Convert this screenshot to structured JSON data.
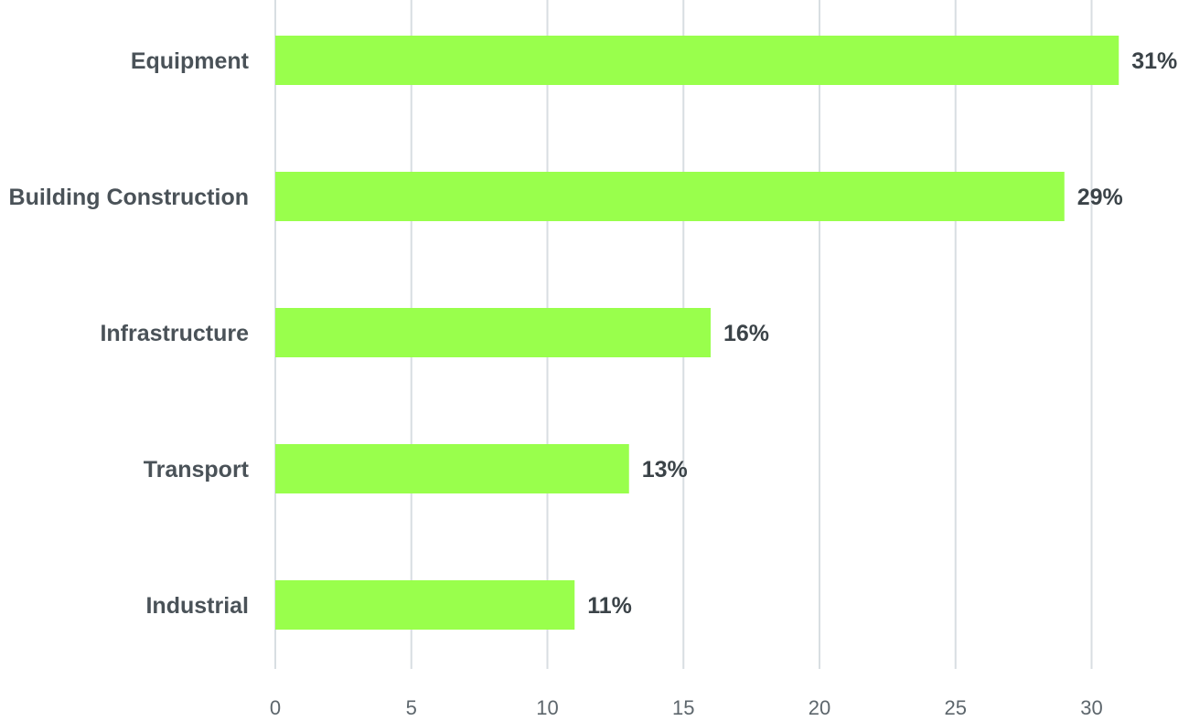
{
  "chart_data": {
    "type": "bar",
    "orientation": "horizontal",
    "categories": [
      "Equipment",
      "Building Construction",
      "Infrastructure",
      "Transport",
      "Industrial"
    ],
    "values": [
      31,
      29,
      16,
      13,
      11
    ],
    "data_labels": [
      "31%",
      "29%",
      "16%",
      "13%",
      "11%"
    ],
    "xlim": [
      0,
      30
    ],
    "xticks": [
      "0",
      "5",
      "10",
      "15",
      "20",
      "25",
      "30"
    ],
    "grid": true,
    "bar_color": "#99ff4c",
    "gridline_color": "#d8dee2",
    "label_color": "#4a5258"
  }
}
